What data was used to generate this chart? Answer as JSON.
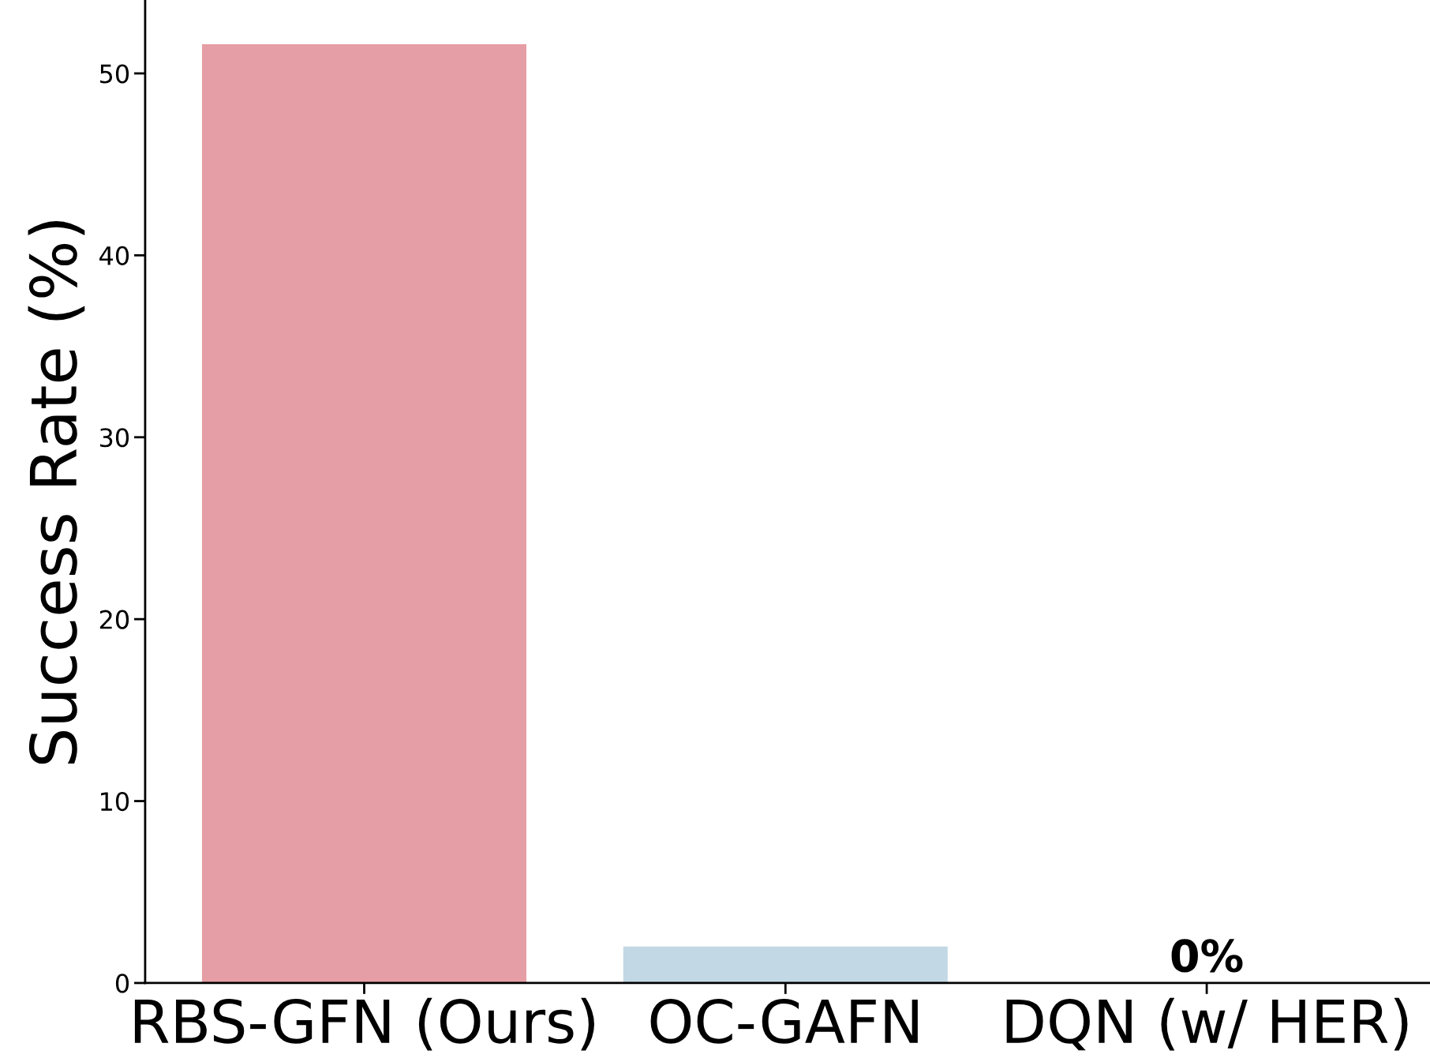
{
  "chart_data": {
    "type": "bar",
    "ylabel": "Success Rate (%)",
    "categories": [
      "RBS-GFN (Ours)",
      "OC-GAFN",
      "DQN (w/ HER)"
    ],
    "values": [
      51.6,
      2.0,
      0
    ],
    "colors": [
      "#e59ea5",
      "#c2d8e4",
      "#c2d8e4"
    ],
    "value_labels": [
      null,
      null,
      "0%"
    ],
    "ylim": [
      0,
      54
    ],
    "yticks": [
      0,
      10,
      20,
      30,
      40,
      50
    ],
    "grid": false
  }
}
